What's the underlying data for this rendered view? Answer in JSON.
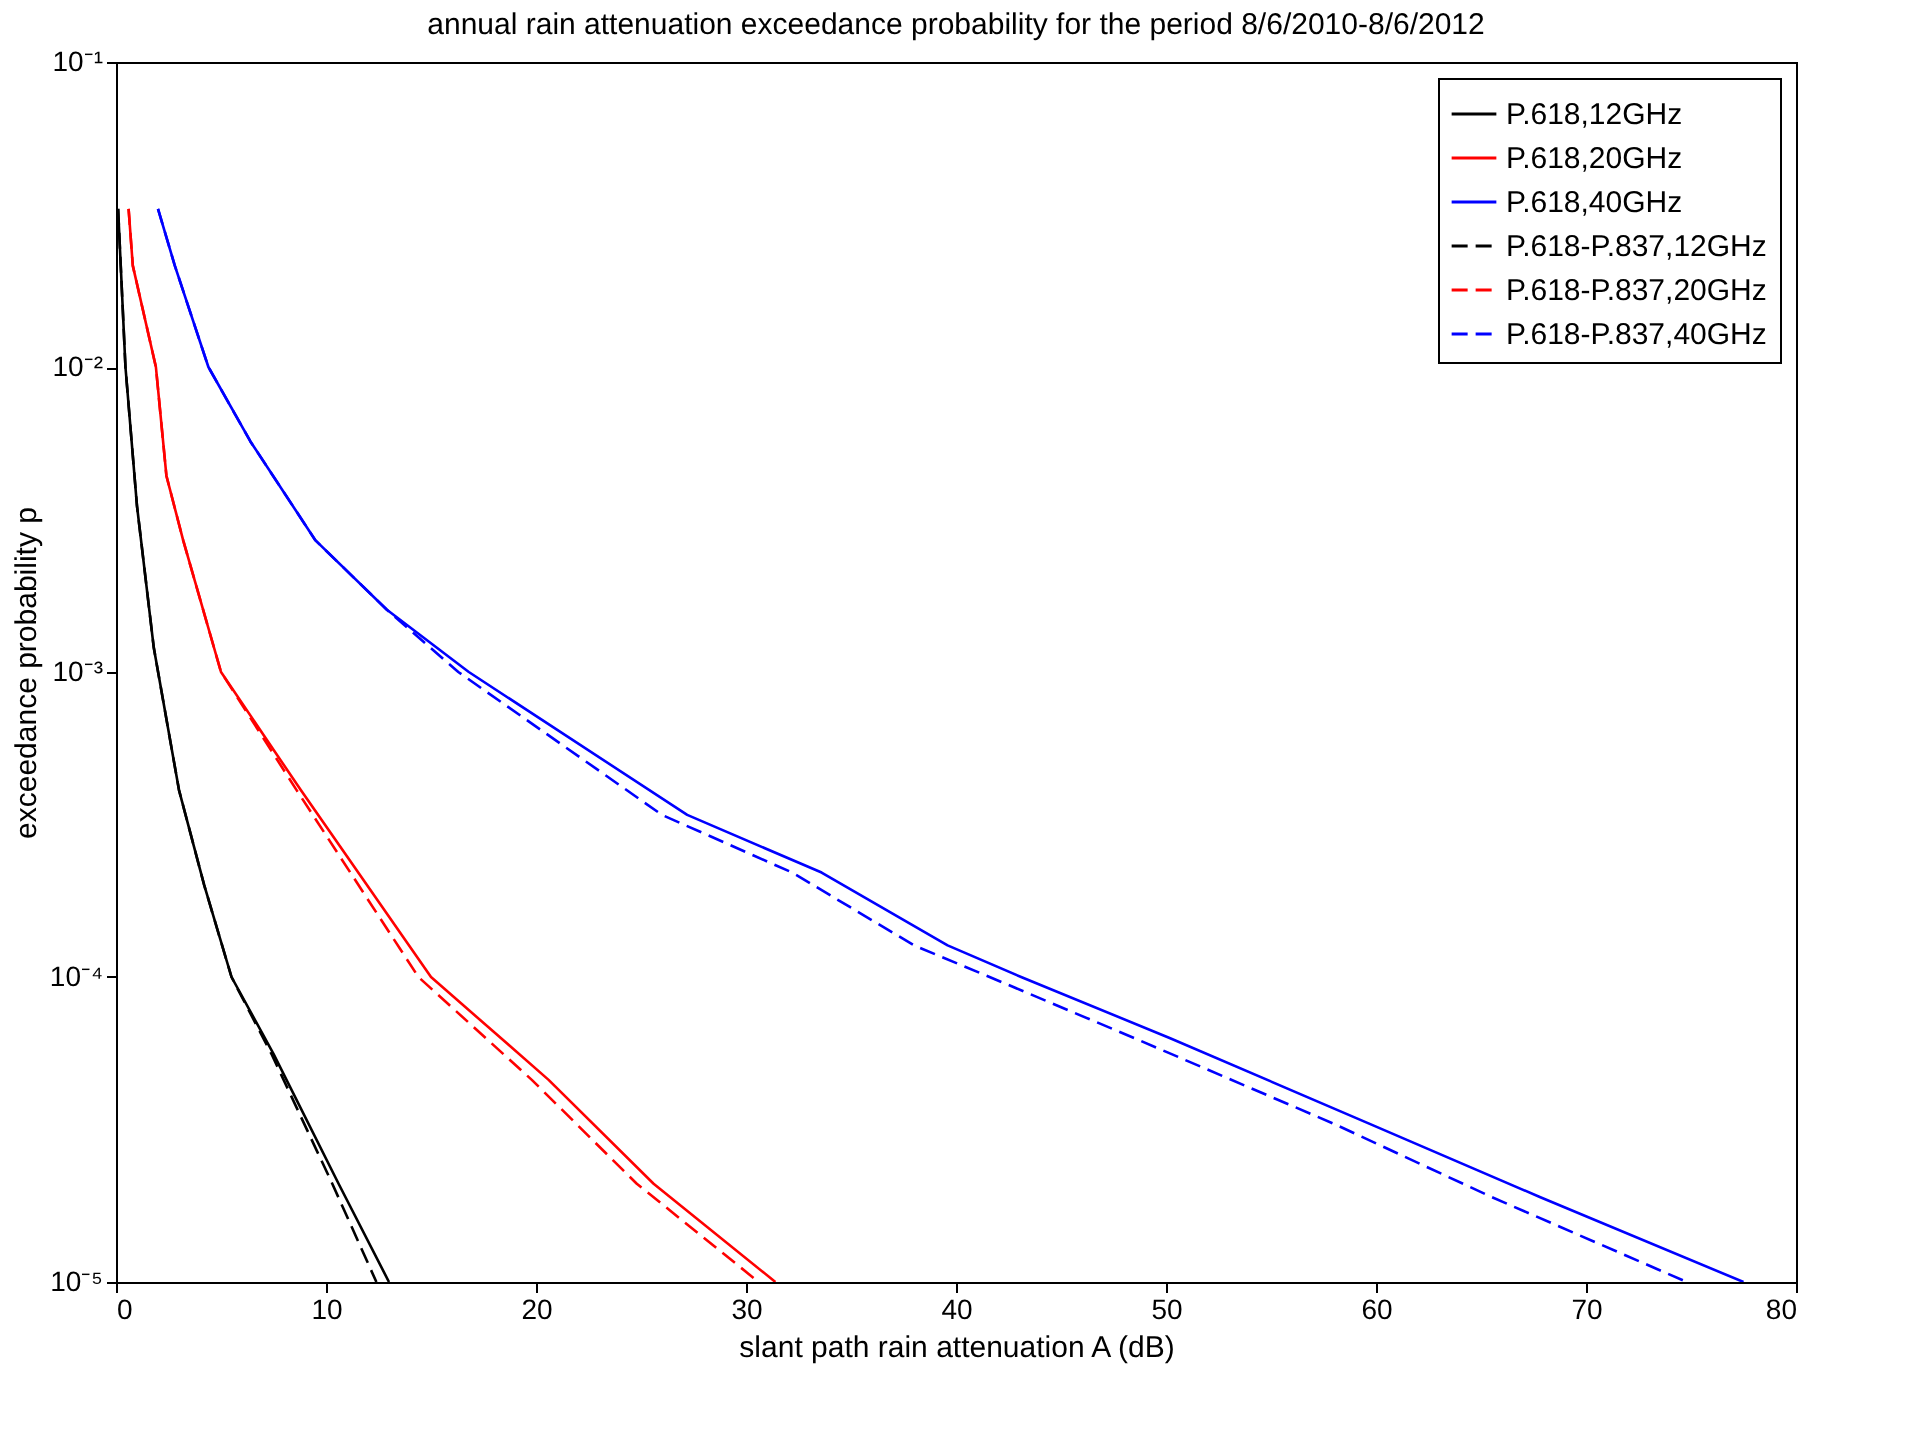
{
  "chart_data": {
    "type": "line",
    "title": "annual rain attenuation exceedance probability for the period 8/6/2010-8/6/2012",
    "xlabel": "slant path rain attenuation A (dB)",
    "ylabel": "exceedance probability p",
    "log": "y",
    "xlim": [
      0,
      80
    ],
    "xticks": [
      0,
      10,
      20,
      30,
      40,
      50,
      60,
      70,
      80
    ],
    "ylim": [
      1e-05,
      0.1
    ],
    "yticks": [
      {
        "value": 1e-05,
        "label": "10⁻⁵"
      },
      {
        "value": 0.0001,
        "label": "10⁻⁴"
      },
      {
        "value": 0.001,
        "label": "10⁻³"
      },
      {
        "value": 0.01,
        "label": "10⁻²"
      },
      {
        "value": 0.1,
        "label": "10⁻¹"
      }
    ],
    "grid": false,
    "legend": "top right",
    "marker": "none",
    "series": [
      {
        "name": "P.618,12GHz",
        "color": "#000000",
        "line_style": "solid",
        "x": [
          0.1,
          0.45,
          1.0,
          1.8,
          3.0,
          4.2,
          5.5,
          7.5,
          10.6,
          13.0
        ],
        "values": [
          0.033,
          0.01,
          0.0035,
          0.0012,
          0.00041,
          0.0002,
          0.0001,
          5.6e-05,
          2.1e-05,
          1e-05
        ]
      },
      {
        "name": "P.618,20GHz",
        "color": "#ff0000",
        "line_style": "solid",
        "x": [
          0.6,
          0.8,
          1.9,
          2.4,
          3.2,
          5.0,
          8.8,
          15.0,
          20.6,
          25.6,
          31.4
        ],
        "values": [
          0.033,
          0.0215,
          0.01,
          0.0044,
          0.0027,
          0.001,
          0.00041,
          0.0001,
          4.6e-05,
          2.1e-05,
          1e-05
        ]
      },
      {
        "name": "P.618,40GHz",
        "color": "#0000ff",
        "line_style": "solid",
        "x": [
          2.0,
          2.8,
          4.4,
          6.4,
          9.5,
          12.9,
          16.8,
          27.2,
          33.6,
          39.6,
          43.1,
          50.2,
          59.7,
          67.8,
          77.5
        ],
        "values": [
          0.033,
          0.0215,
          0.01,
          0.0057,
          0.0027,
          0.0016,
          0.001,
          0.00034,
          0.00022,
          0.000127,
          0.0001,
          6.3e-05,
          3.3e-05,
          1.9e-05,
          1e-05
        ]
      },
      {
        "name": "P.618-P.837,12GHz",
        "color": "#000000",
        "line_style": "dashed",
        "x": [
          0.1,
          0.45,
          1.0,
          1.8,
          3.0,
          4.2,
          5.5,
          7.4,
          10.3,
          12.4
        ],
        "values": [
          0.033,
          0.01,
          0.0035,
          0.0012,
          0.00041,
          0.0002,
          0.0001,
          5.6e-05,
          2.1e-05,
          1e-05
        ]
      },
      {
        "name": "P.618-P.837,20GHz",
        "color": "#ff0000",
        "line_style": "dashed",
        "x": [
          0.6,
          0.8,
          1.9,
          2.4,
          3.2,
          5.0,
          8.6,
          14.4,
          19.8,
          24.8,
          30.6
        ],
        "values": [
          0.033,
          0.0215,
          0.01,
          0.0044,
          0.0027,
          0.001,
          0.00041,
          0.0001,
          4.6e-05,
          2.1e-05,
          1e-05
        ]
      },
      {
        "name": "P.618-P.837,40GHz",
        "color": "#0000ff",
        "line_style": "dashed",
        "x": [
          2.0,
          2.8,
          4.4,
          6.4,
          9.5,
          12.9,
          16.3,
          26.0,
          32.2,
          38.0,
          41.6,
          48.5,
          58.0,
          65.5,
          74.8
        ],
        "values": [
          0.033,
          0.0215,
          0.01,
          0.0057,
          0.0027,
          0.0016,
          0.001,
          0.00034,
          0.00022,
          0.000127,
          0.0001,
          6.3e-05,
          3.3e-05,
          1.9e-05,
          1e-05
        ]
      }
    ]
  }
}
